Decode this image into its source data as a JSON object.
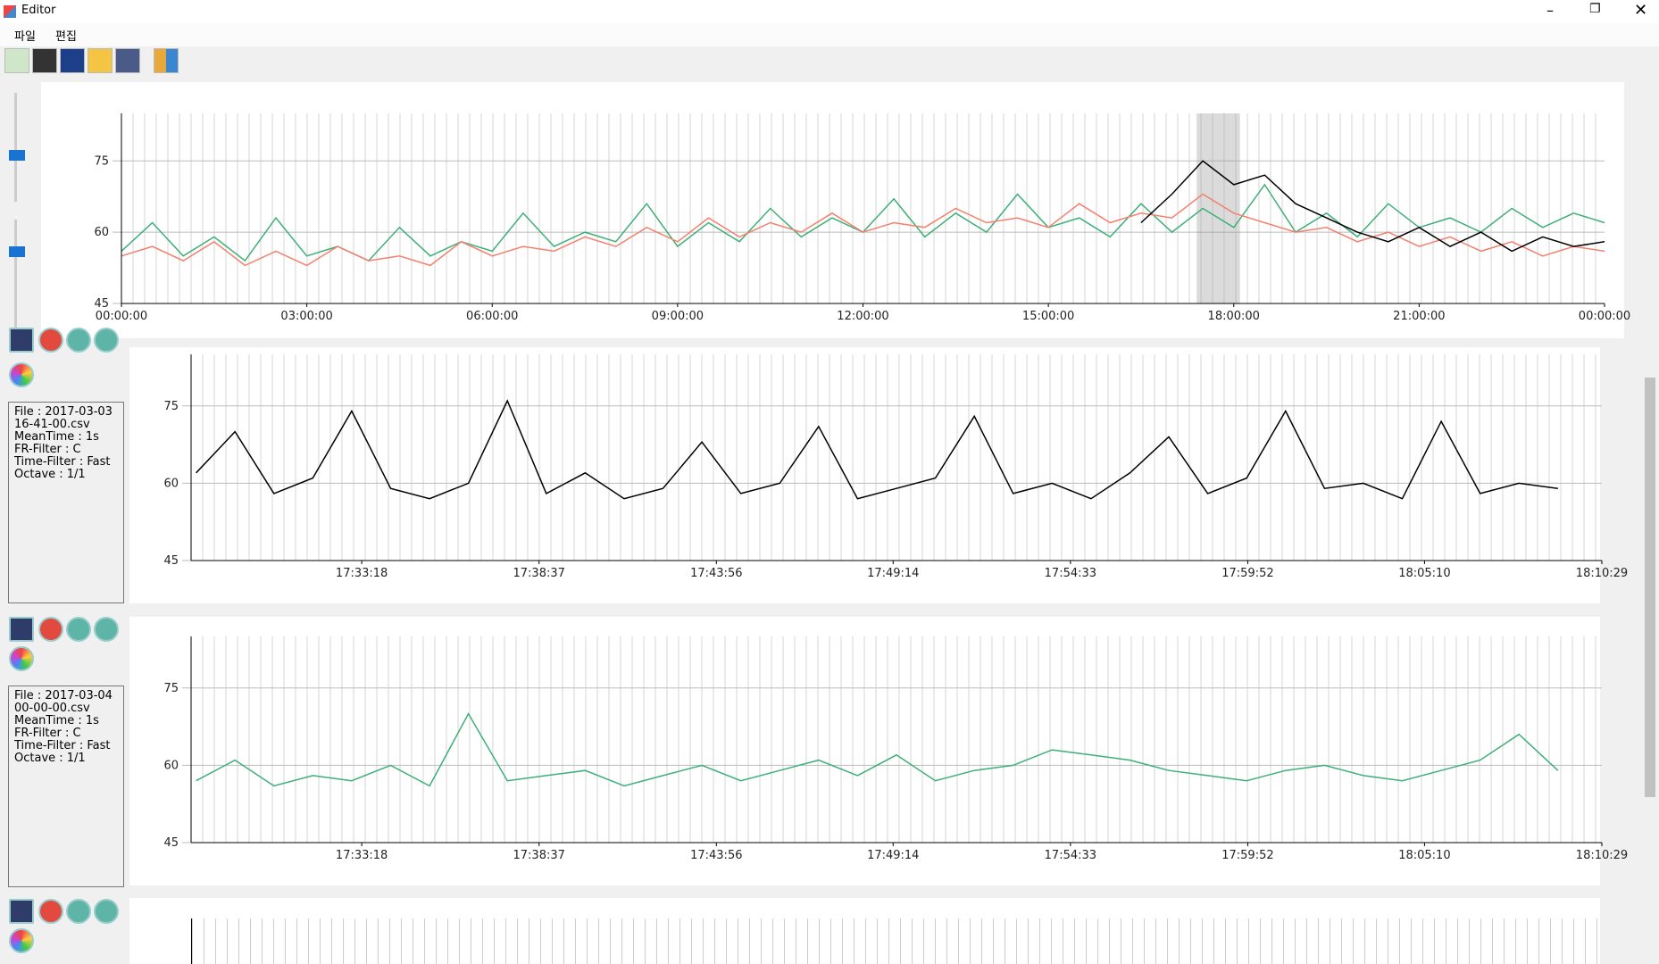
{
  "window_title": "Editor",
  "menu": [
    "파일",
    "편집"
  ],
  "overview": {
    "type": "line",
    "xlim": [
      0,
      24
    ],
    "ylim": [
      45,
      85
    ],
    "yticks": [
      45,
      60,
      75
    ],
    "xticks": [
      {
        "value": 0,
        "label": "00:00:00"
      },
      {
        "value": 3,
        "label": "03:00:00"
      },
      {
        "value": 6,
        "label": "06:00:00"
      },
      {
        "value": 9,
        "label": "09:00:00"
      },
      {
        "value": 12,
        "label": "12:00:00"
      },
      {
        "value": 15,
        "label": "15:00:00"
      },
      {
        "value": 18,
        "label": "18:00:00"
      },
      {
        "value": 21,
        "label": "21:00:00"
      },
      {
        "value": 24,
        "label": "00:00:00"
      }
    ],
    "highlight": [
      17.4,
      18.1
    ],
    "x": [
      0,
      0.5,
      1,
      1.5,
      2,
      2.5,
      3,
      3.5,
      4,
      4.5,
      5,
      5.5,
      6,
      6.5,
      7,
      7.5,
      8,
      8.5,
      9,
      9.5,
      10,
      10.5,
      11,
      11.5,
      12,
      12.5,
      13,
      13.5,
      14,
      14.5,
      15,
      15.5,
      16,
      16.5,
      17,
      17.5,
      18,
      18.5,
      19,
      19.5,
      20,
      20.5,
      21,
      21.5,
      22,
      22.5,
      23,
      23.5,
      24
    ],
    "series": [
      {
        "color": "#3daf78",
        "values": [
          56,
          62,
          55,
          59,
          54,
          63,
          55,
          57,
          54,
          61,
          55,
          58,
          56,
          64,
          57,
          60,
          58,
          66,
          57,
          62,
          58,
          65,
          59,
          63,
          60,
          67,
          59,
          64,
          60,
          68,
          61,
          63,
          59,
          66,
          60,
          65,
          61,
          70,
          60,
          64,
          59,
          66,
          61,
          63,
          60,
          65,
          61,
          64,
          62
        ]
      },
      {
        "color": "#f4806e",
        "values": [
          55,
          57,
          54,
          58,
          53,
          56,
          53,
          57,
          54,
          55,
          53,
          58,
          55,
          57,
          56,
          59,
          57,
          61,
          58,
          63,
          59,
          62,
          60,
          64,
          60,
          62,
          61,
          65,
          62,
          63,
          61,
          66,
          62,
          64,
          63,
          68,
          64,
          62,
          60,
          61,
          58,
          60,
          57,
          59,
          56,
          58,
          55,
          57,
          56
        ]
      },
      {
        "color": "#000000",
        "values": [
          null,
          null,
          null,
          null,
          null,
          null,
          null,
          null,
          null,
          null,
          null,
          null,
          null,
          null,
          null,
          null,
          null,
          null,
          null,
          null,
          null,
          null,
          null,
          null,
          null,
          null,
          null,
          null,
          null,
          null,
          null,
          null,
          null,
          62,
          68,
          75,
          70,
          72,
          66,
          63,
          60,
          58,
          61,
          57,
          60,
          56,
          59,
          57,
          58
        ]
      }
    ]
  },
  "panels": [
    {
      "info": "File : 2017-03-03 16-41-00.csv\nMeanTime : 1s\nFR-Filter : C\nTime-Filter : Fast\nOctave : 1/1",
      "chart": {
        "type": "line",
        "xlim": [
          62891,
          65429
        ],
        "ylim": [
          45,
          85
        ],
        "yticks": [
          45,
          60,
          75
        ],
        "xticks": [
          {
            "value": 63198,
            "label": "17:33:18"
          },
          {
            "value": 63517,
            "label": "17:38:37"
          },
          {
            "value": 63836,
            "label": "17:43:56"
          },
          {
            "value": 64154,
            "label": "17:49:14"
          },
          {
            "value": 64473,
            "label": "17:54:33"
          },
          {
            "value": 64792,
            "label": "17:59:52"
          },
          {
            "value": 65110,
            "label": "18:05:10"
          },
          {
            "value": 65429,
            "label": "18:10:29"
          }
        ],
        "x": [
          62900,
          62970,
          63040,
          63110,
          63180,
          63250,
          63320,
          63390,
          63460,
          63530,
          63600,
          63670,
          63740,
          63810,
          63880,
          63950,
          64020,
          64090,
          64160,
          64230,
          64300,
          64370,
          64440,
          64510,
          64580,
          64650,
          64720,
          64790,
          64860,
          64930,
          65000,
          65070,
          65140,
          65210,
          65280,
          65350
        ],
        "series": [
          {
            "color": "#000000",
            "values": [
              62,
              70,
              58,
              61,
              74,
              59,
              57,
              60,
              76,
              58,
              62,
              57,
              59,
              68,
              58,
              60,
              71,
              57,
              59,
              61,
              73,
              58,
              60,
              57,
              62,
              69,
              58,
              61,
              74,
              59,
              60,
              57,
              72,
              58,
              60,
              59
            ]
          }
        ]
      }
    },
    {
      "info": "File : 2017-03-04 00-00-00.csv\nMeanTime : 1s\nFR-Filter : C\nTime-Filter : Fast\nOctave : 1/1",
      "chart": {
        "type": "line",
        "xlim": [
          62891,
          65429
        ],
        "ylim": [
          45,
          85
        ],
        "yticks": [
          45,
          60,
          75
        ],
        "xticks": [
          {
            "value": 63198,
            "label": "17:33:18"
          },
          {
            "value": 63517,
            "label": "17:38:37"
          },
          {
            "value": 63836,
            "label": "17:43:56"
          },
          {
            "value": 64154,
            "label": "17:49:14"
          },
          {
            "value": 64473,
            "label": "17:54:33"
          },
          {
            "value": 64792,
            "label": "17:59:52"
          },
          {
            "value": 65110,
            "label": "18:05:10"
          },
          {
            "value": 65429,
            "label": "18:10:29"
          }
        ],
        "x": [
          62900,
          62970,
          63040,
          63110,
          63180,
          63250,
          63320,
          63390,
          63460,
          63530,
          63600,
          63670,
          63740,
          63810,
          63880,
          63950,
          64020,
          64090,
          64160,
          64230,
          64300,
          64370,
          64440,
          64510,
          64580,
          64650,
          64720,
          64790,
          64860,
          64930,
          65000,
          65070,
          65140,
          65210,
          65280,
          65350
        ],
        "series": [
          {
            "color": "#3daf78",
            "values": [
              57,
              61,
              56,
              58,
              57,
              60,
              56,
              70,
              57,
              58,
              59,
              56,
              58,
              60,
              57,
              59,
              61,
              58,
              62,
              57,
              59,
              60,
              63,
              62,
              61,
              59,
              58,
              57,
              59,
              60,
              58,
              57,
              59,
              61,
              66,
              59
            ]
          }
        ]
      }
    }
  ]
}
